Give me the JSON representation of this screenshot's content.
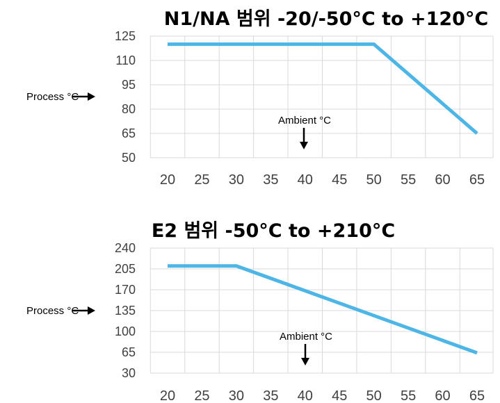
{
  "chart_data": [
    {
      "type": "line",
      "title": "N1/NA 범위 -20/-50°C to +120°C",
      "x": [
        20,
        50,
        65
      ],
      "values": [
        120,
        120,
        65
      ],
      "xticks": [
        "20",
        "25",
        "30",
        "35",
        "40",
        "45",
        "50",
        "55",
        "60",
        "65"
      ],
      "yticks": [
        "125",
        "110",
        "95",
        "80",
        "65",
        "50"
      ],
      "xlim": [
        20,
        65
      ],
      "ylim": [
        50,
        125
      ],
      "grid": true,
      "ylabel": "Process °C",
      "xlabel": "Ambient °C",
      "color": "#4DB6E6"
    },
    {
      "type": "line",
      "title": "E2 범위 -50°C to +210°C",
      "x": [
        20,
        30,
        65
      ],
      "values": [
        210,
        210,
        64
      ],
      "xticks": [
        "20",
        "25",
        "30",
        "35",
        "40",
        "45",
        "50",
        "55",
        "60",
        "65"
      ],
      "yticks": [
        "240",
        "205",
        "170",
        "135",
        "100",
        "65",
        "30"
      ],
      "xlim": [
        20,
        65
      ],
      "ylim": [
        30,
        240
      ],
      "grid": true,
      "ylabel": "Process °C",
      "xlabel": "Ambient °C",
      "color": "#4DB6E6"
    }
  ]
}
